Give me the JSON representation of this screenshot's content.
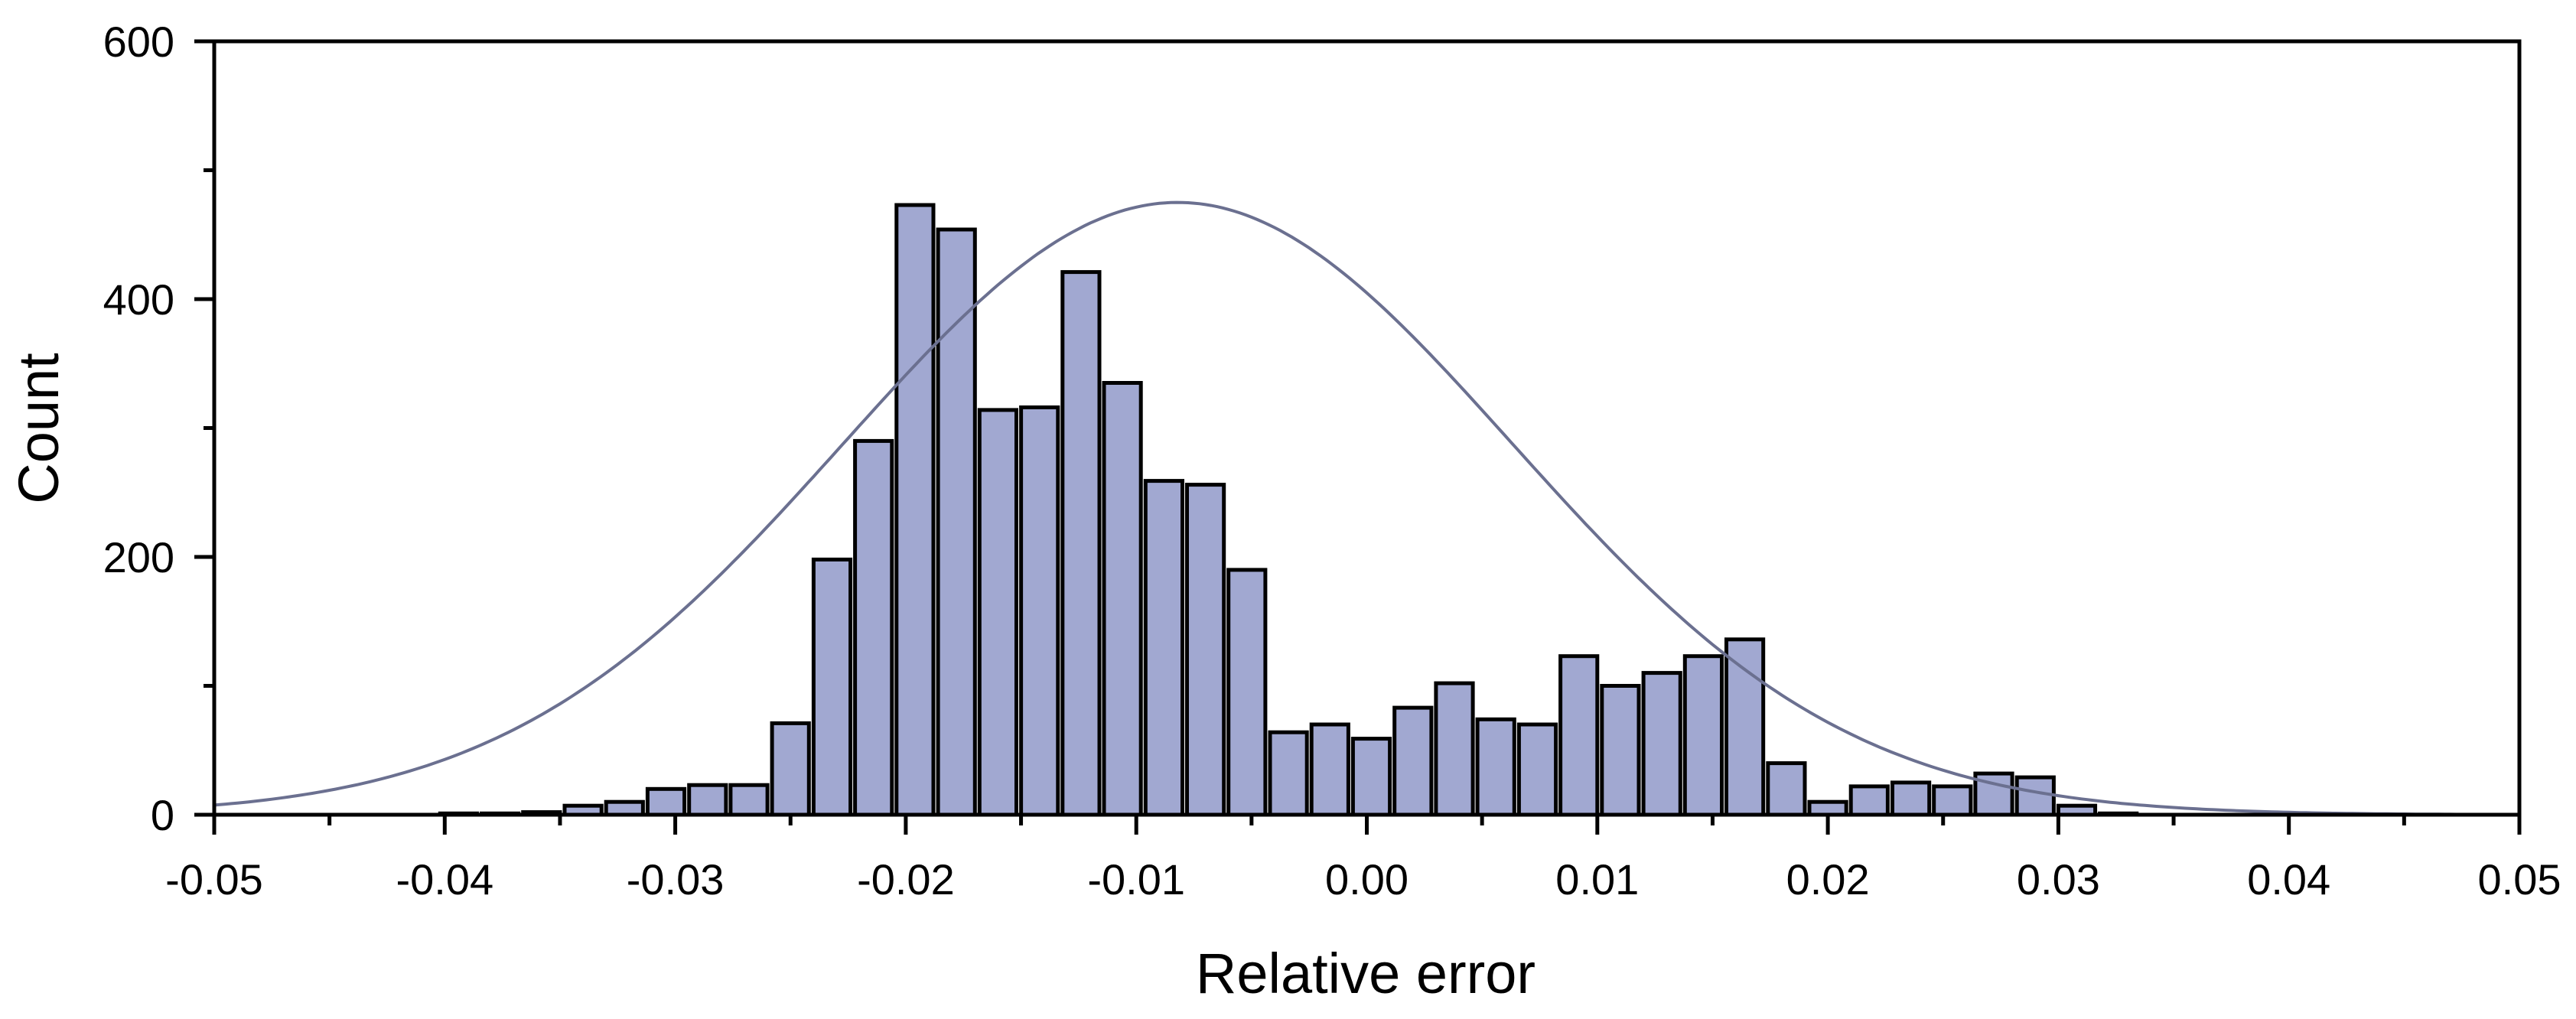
{
  "chart_data": {
    "type": "bar",
    "subtype": "histogram with normal fit curve",
    "title": "",
    "xlabel": "Relative error",
    "ylabel": "Count",
    "xlim": [
      -0.05,
      0.05
    ],
    "ylim": [
      0,
      600
    ],
    "x_ticks": [
      "-0.05",
      "-0.04",
      "-0.03",
      "-0.02",
      "-0.01",
      "0.00",
      "0.01",
      "0.02",
      "0.03",
      "0.04",
      "0.05"
    ],
    "y_ticks": [
      "0",
      "200",
      "400",
      "600"
    ],
    "bin_width": 0.0018,
    "bin_centers": [
      -0.0394,
      -0.0376,
      -0.0358,
      -0.034,
      -0.0322,
      -0.0304,
      -0.0286,
      -0.0268,
      -0.025,
      -0.0232,
      -0.0214,
      -0.0196,
      -0.0178,
      -0.016,
      -0.0142,
      -0.0124,
      -0.0106,
      -0.0088,
      -0.007,
      -0.0052,
      -0.0034,
      -0.0016,
      0.0002,
      0.002,
      0.0038,
      0.0056,
      0.0074,
      0.0092,
      0.011,
      0.0128,
      0.0146,
      0.0164,
      0.0182,
      0.02,
      0.0218,
      0.0236,
      0.0254,
      0.0272,
      0.029,
      0.0308,
      0.0326
    ],
    "counts": [
      1,
      1,
      2,
      7,
      10,
      20,
      23,
      23,
      71,
      198,
      290,
      473,
      454,
      314,
      316,
      421,
      335,
      259,
      256,
      190,
      64,
      70,
      59,
      83,
      102,
      74,
      70,
      123,
      100,
      110,
      123,
      136,
      40,
      10,
      22,
      25,
      22,
      32,
      29,
      7,
      1
    ],
    "fit_curve": {
      "type": "normal",
      "mean": -0.0082,
      "sd": 0.0145,
      "peak": 475
    },
    "grid": false,
    "legend": "none",
    "colors": {
      "bar_fill": "#a1a8d1",
      "bar_edge": "#000000",
      "curve": "#6b7090",
      "axis": "#000000"
    }
  }
}
